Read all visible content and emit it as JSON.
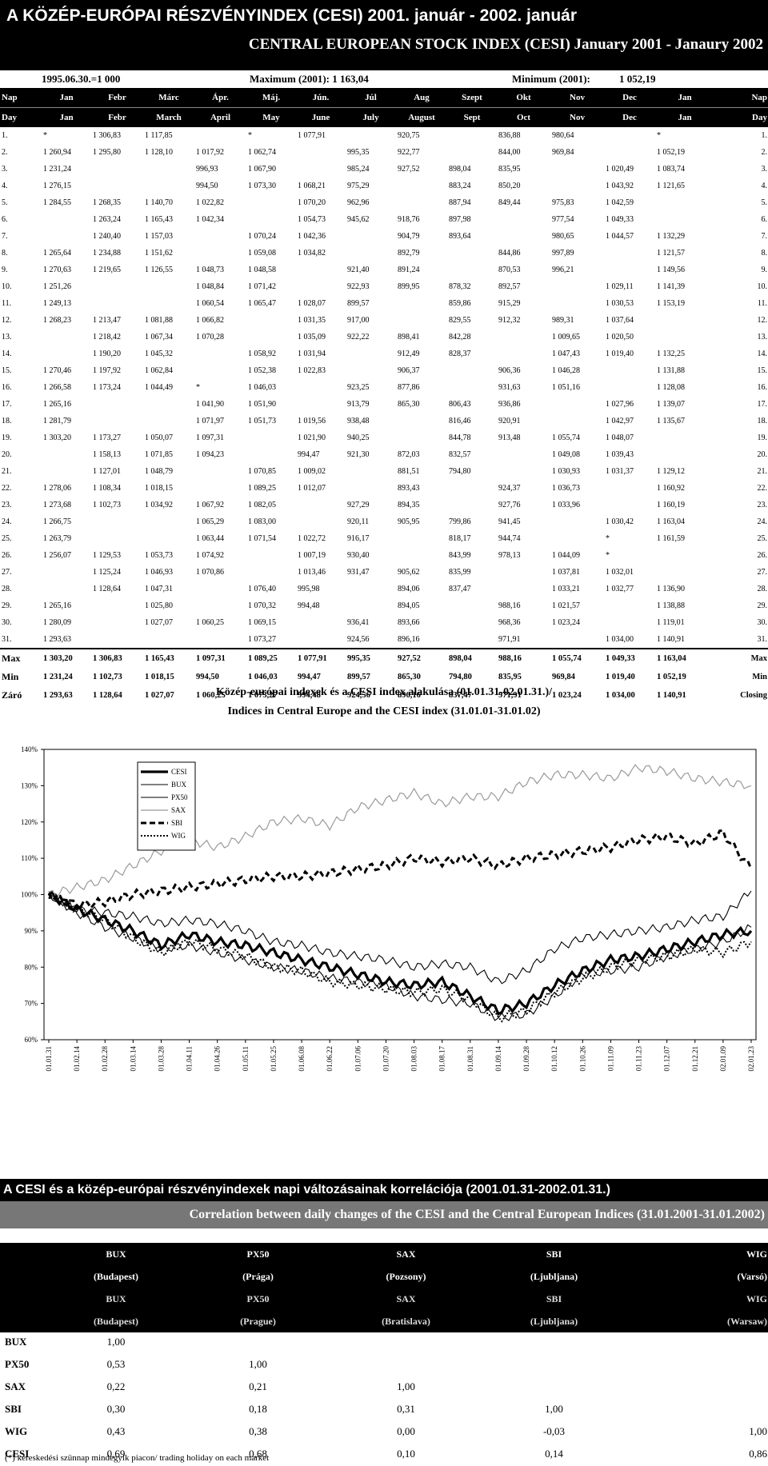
{
  "title_hu": "A KÖZÉP-EURÓPAI RÉSZVÉNYINDEX (CESI) 2001. január - 2002. január",
  "title_en": "CENTRAL EUROPEAN STOCK INDEX (CESI) January 2001 - Janaury 2002",
  "base": "1995.06.30.=1 000",
  "maximum": "Maximum (2001): 1 163,04",
  "minimum_label": "Minimum (2001):",
  "minimum_value": "1 052,19",
  "header_hu": [
    "Nap",
    "Jan",
    "Febr",
    "Márc",
    "Ápr.",
    "Máj.",
    "Jún.",
    "Júl",
    "Aug",
    "Szept",
    "Okt",
    "Nov",
    "Dec",
    "Jan",
    "Nap"
  ],
  "header_en": [
    "Day",
    "Jan",
    "Febr",
    "March",
    "April",
    "May",
    "June",
    "July",
    "August",
    "Sept",
    "Oct",
    "Nov",
    "Dec",
    "Jan",
    "Day"
  ],
  "rows": [
    [
      "1.",
      "*",
      "1 306,83",
      "1 117,85",
      "",
      "*",
      "1 077,91",
      "",
      "920,75",
      "",
      "836,88",
      "980,64",
      "",
      "*",
      "1."
    ],
    [
      "2.",
      "1 260,94",
      "1 295,80",
      "1 128,10",
      "1 017,92",
      "1 062,74",
      "",
      "995,35",
      "922,77",
      "",
      "844,00",
      "969,84",
      "",
      "1 052,19",
      "2."
    ],
    [
      "3.",
      "1 231,24",
      "",
      "",
      "996,93",
      "1 067,90",
      "",
      "985,24",
      "927,52",
      "898,04",
      "835,95",
      "",
      "1 020,49",
      "1 083,74",
      "3."
    ],
    [
      "4.",
      "1 276,15",
      "",
      "",
      "994,50",
      "1 073,30",
      "1 068,21",
      "975,29",
      "",
      "883,24",
      "850,20",
      "",
      "1 043,92",
      "1 121,65",
      "4."
    ],
    [
      "5.",
      "1 284,55",
      "1 268,35",
      "1 140,70",
      "1 022,82",
      "",
      "1 070,20",
      "962,96",
      "",
      "887,94",
      "849,44",
      "975,83",
      "1 042,59",
      "",
      "5."
    ],
    [
      "6.",
      "",
      "1 263,24",
      "1 165,43",
      "1 042,34",
      "",
      "1 054,73",
      "945,62",
      "918,76",
      "897,98",
      "",
      "977,54",
      "1 049,33",
      "",
      "6."
    ],
    [
      "7.",
      "",
      "1 240,40",
      "1 157,03",
      "",
      "1 070,24",
      "1 042,36",
      "",
      "904,79",
      "893,64",
      "",
      "980,65",
      "1 044,57",
      "1 132,29",
      "7."
    ],
    [
      "8.",
      "1 265,64",
      "1 234,88",
      "1 151,62",
      "",
      "1 059,08",
      "1 034,82",
      "",
      "892,79",
      "",
      "844,86",
      "997,89",
      "",
      "1 121,57",
      "8."
    ],
    [
      "9.",
      "1 270,63",
      "1 219,65",
      "1 126,55",
      "1 048,73",
      "1 048,58",
      "",
      "921,40",
      "891,24",
      "",
      "870,53",
      "996,21",
      "",
      "1 149,56",
      "9."
    ],
    [
      "10.",
      "1 251,26",
      "",
      "",
      "1 048,84",
      "1 071,42",
      "",
      "922,93",
      "899,95",
      "878,32",
      "892,57",
      "",
      "1 029,11",
      "1 141,39",
      "10."
    ],
    [
      "11.",
      "1 249,13",
      "",
      "",
      "1 060,54",
      "1 065,47",
      "1 028,07",
      "899,57",
      "",
      "859,86",
      "915,29",
      "",
      "1 030,53",
      "1 153,19",
      "11."
    ],
    [
      "12.",
      "1 268,23",
      "1 213,47",
      "1 081,88",
      "1 066,82",
      "",
      "1 031,35",
      "917,00",
      "",
      "829,55",
      "912,32",
      "989,31",
      "1 037,64",
      "",
      "12."
    ],
    [
      "13.",
      "",
      "1 218,42",
      "1 067,34",
      "1 070,28",
      "",
      "1 035,09",
      "922,22",
      "898,41",
      "842,28",
      "",
      "1 009,65",
      "1 020,50",
      "",
      "13."
    ],
    [
      "14.",
      "",
      "1 190,20",
      "1 045,32",
      "",
      "1 058,92",
      "1 031,94",
      "",
      "912,49",
      "828,37",
      "",
      "1 047,43",
      "1 019,40",
      "1 132,25",
      "14."
    ],
    [
      "15.",
      "1 270,46",
      "1 197,92",
      "1 062,84",
      "",
      "1 052,38",
      "1 022,83",
      "",
      "906,37",
      "",
      "906,36",
      "1 046,28",
      "",
      "1 131,88",
      "15."
    ],
    [
      "16.",
      "1 266,58",
      "1 173,24",
      "1 044,49",
      "*",
      "1 046,03",
      "",
      "923,25",
      "877,86",
      "",
      "931,63",
      "1 051,16",
      "",
      "1 128,08",
      "16."
    ],
    [
      "17.",
      "1 265,16",
      "",
      "",
      "1 041,90",
      "1 051,90",
      "",
      "913,79",
      "865,30",
      "806,43",
      "936,86",
      "",
      "1 027,96",
      "1 139,07",
      "17."
    ],
    [
      "18.",
      "1 281,79",
      "",
      "",
      "1 071,97",
      "1 051,73",
      "1 019,56",
      "938,48",
      "",
      "816,46",
      "920,91",
      "",
      "1 042,97",
      "1 135,67",
      "18."
    ],
    [
      "19.",
      "1 303,20",
      "1 173,27",
      "1 050,07",
      "1 097,31",
      "",
      "1 021,90",
      "940,25",
      "",
      "844,78",
      "913,48",
      "1 055,74",
      "1 048,07",
      "",
      "19."
    ],
    [
      "20.",
      "",
      "1 158,13",
      "1 071,85",
      "1 094,23",
      "",
      "994,47",
      "921,30",
      "872,03",
      "832,57",
      "",
      "1 049,08",
      "1 039,43",
      "",
      "20."
    ],
    [
      "21.",
      "",
      "1 127,01",
      "1 048,79",
      "",
      "1 070,85",
      "1 009,02",
      "",
      "881,51",
      "794,80",
      "",
      "1 030,93",
      "1 031,37",
      "1 129,12",
      "21."
    ],
    [
      "22.",
      "1 278,06",
      "1 108,34",
      "1 018,15",
      "",
      "1 089,25",
      "1 012,07",
      "",
      "893,43",
      "",
      "924,37",
      "1 036,73",
      "",
      "1 160,92",
      "22."
    ],
    [
      "23.",
      "1 273,68",
      "1 102,73",
      "1 034,92",
      "1 067,92",
      "1 082,05",
      "",
      "927,29",
      "894,35",
      "",
      "927,76",
      "1 033,96",
      "",
      "1 160,19",
      "23."
    ],
    [
      "24.",
      "1 266,75",
      "",
      "",
      "1 065,29",
      "1 083,00",
      "",
      "920,11",
      "905,95",
      "799,86",
      "941,45",
      "",
      "1 030,42",
      "1 163,04",
      "24."
    ],
    [
      "25.",
      "1 263,79",
      "",
      "",
      "1 063,44",
      "1 071,54",
      "1 022,72",
      "916,17",
      "",
      "818,17",
      "944,74",
      "",
      "*",
      "1 161,59",
      "25."
    ],
    [
      "26.",
      "1 256,07",
      "1 129,53",
      "1 053,73",
      "1 074,92",
      "",
      "1 007,19",
      "930,40",
      "",
      "843,99",
      "978,13",
      "1 044,09",
      "*",
      "",
      "26."
    ],
    [
      "27.",
      "",
      "1 125,24",
      "1 046,93",
      "1 070,86",
      "",
      "1 013,46",
      "931,47",
      "905,62",
      "835,99",
      "",
      "1 037,81",
      "1 032,01",
      "",
      "27."
    ],
    [
      "28.",
      "",
      "1 128,64",
      "1 047,31",
      "",
      "1 076,40",
      "995,98",
      "",
      "894,06",
      "837,47",
      "",
      "1 033,21",
      "1 032,77",
      "1 136,90",
      "28."
    ],
    [
      "29.",
      "1 265,16",
      "",
      "1 025,80",
      "",
      "1 070,32",
      "994,48",
      "",
      "894,05",
      "",
      "988,16",
      "1 021,57",
      "",
      "1 138,88",
      "29."
    ],
    [
      "30.",
      "1 280,09",
      "",
      "1 027,07",
      "1 060,25",
      "1 069,15",
      "",
      "936,41",
      "893,66",
      "",
      "968,36",
      "1 023,24",
      "",
      "1 119,01",
      "30."
    ],
    [
      "31.",
      "1 293,63",
      "",
      "",
      "",
      "1 073,27",
      "",
      "924,56",
      "896,16",
      "",
      "971,91",
      "",
      "1 034,00",
      "1 140,91",
      "31."
    ]
  ],
  "stats": [
    [
      "Max",
      "1 303,20",
      "1 306,83",
      "1 165,43",
      "1 097,31",
      "1 089,25",
      "1 077,91",
      "995,35",
      "927,52",
      "898,04",
      "988,16",
      "1 055,74",
      "1 049,33",
      "1 163,04",
      "Max"
    ],
    [
      "Min",
      "1 231,24",
      "1 102,73",
      "1 018,15",
      "994,50",
      "1 046,03",
      "994,47",
      "899,57",
      "865,30",
      "794,80",
      "835,95",
      "969,84",
      "1 019,40",
      "1 052,19",
      "Min"
    ],
    [
      "Záró",
      "1 293,63",
      "1 128,64",
      "1 027,07",
      "1 060,25",
      "1 073,27",
      "994,48",
      "924,56",
      "896,16",
      "837,47",
      "971,91",
      "1 023,24",
      "1 034,00",
      "1 140,91",
      "Closing"
    ]
  ],
  "chart_title_hu": "Közép-európai indexek és a CESI index alakulása (01.01.31-02.01.31.)/",
  "chart_title_en": "Indices in Central Europe and the CESI index (31.01.01-31.01.02)",
  "chart_data": {
    "type": "line",
    "ylim": [
      60,
      140
    ],
    "y_ticks": [
      "60%",
      "70%",
      "80%",
      "90%",
      "100%",
      "110%",
      "120%",
      "130%",
      "140%"
    ],
    "x_ticks": [
      "01.01.31",
      "01.02.14",
      "01.02.28",
      "01.03.14",
      "01.03.28",
      "01.04.11",
      "01.04.26",
      "01.05.11",
      "01.05.25",
      "01.06.08",
      "01.06.22",
      "01.07.06",
      "01.07.20",
      "01.08.03",
      "01.08.17",
      "01.08.31",
      "01.09.14",
      "01.09.28",
      "01.10.12",
      "01.10.26",
      "01.11.09",
      "01.11.23",
      "01.12.07",
      "01.12.21",
      "02.01.09",
      "02.01.23"
    ],
    "series": [
      {
        "name": "CESI",
        "style": "thick",
        "values": [
          100,
          96,
          93,
          90,
          86,
          89,
          87,
          86,
          84,
          82,
          80,
          78,
          76,
          75,
          76,
          72,
          68,
          70,
          75,
          79,
          82,
          83,
          85,
          87,
          89,
          90
        ]
      },
      {
        "name": "BUX",
        "style": "solid",
        "values": [
          100,
          95,
          91,
          88,
          85,
          86,
          84,
          82,
          80,
          79,
          77,
          76,
          75,
          72,
          71,
          70,
          66,
          67,
          72,
          78,
          79,
          80,
          83,
          85,
          87,
          91
        ]
      },
      {
        "name": "PX50",
        "style": "solid",
        "values": [
          100,
          96,
          95,
          94,
          92,
          93,
          92,
          90,
          87,
          86,
          84,
          83,
          82,
          80,
          81,
          80,
          76,
          79,
          85,
          88,
          89,
          90,
          91,
          93,
          94,
          101
        ]
      },
      {
        "name": "SAX",
        "style": "light",
        "values": [
          100,
          102,
          104,
          108,
          112,
          115,
          113,
          116,
          120,
          121,
          119,
          124,
          126,
          128,
          125,
          127,
          127,
          131,
          133,
          133,
          132,
          135,
          134,
          132,
          131,
          130
        ]
      },
      {
        "name": "SBI",
        "style": "dashed",
        "values": [
          100,
          97,
          98,
          100,
          101,
          102,
          103,
          104,
          105,
          105,
          106,
          107,
          108,
          110,
          109,
          110,
          108,
          110,
          111,
          112,
          113,
          115,
          116,
          114,
          117,
          107
        ]
      },
      {
        "name": "WIG",
        "style": "dotted",
        "values": [
          100,
          96,
          93,
          88,
          84,
          87,
          85,
          83,
          80,
          79,
          76,
          75,
          74,
          73,
          74,
          71,
          66,
          68,
          73,
          77,
          80,
          82,
          83,
          85,
          84,
          87
        ]
      }
    ]
  },
  "corr_title_hu": "A CESI és a közép-európai részvényindexek napi változásainak korrelációja (2001.01.31-2002.01.31.)",
  "corr_title_en": "Correlation between daily changes of the CESI and the Central European Indices (31.01.2001-31.01.2002)",
  "corr_headers": [
    "BUX",
    "PX50",
    "SAX",
    "SBI",
    "WIG"
  ],
  "corr_sub_hu": [
    "(Budapest)",
    "(Prága)",
    "(Pozsony)",
    "(Ljubljana)",
    "(Varsó)"
  ],
  "corr_sub_en_name": [
    "BUX",
    "PX50",
    "SAX",
    "SBI",
    "WIG"
  ],
  "corr_sub_en": [
    "(Budapest)",
    "(Prague)",
    "(Bratislava)",
    "(Ljubljana)",
    "(Warsaw)"
  ],
  "corr_rows": [
    [
      "BUX",
      "1,00",
      "",
      "",
      "",
      ""
    ],
    [
      "PX50",
      "0,53",
      "1,00",
      "",
      "",
      ""
    ],
    [
      "SAX",
      "0,22",
      "0,21",
      "1,00",
      "",
      ""
    ],
    [
      "SBI",
      "0,30",
      "0,18",
      "0,31",
      "1,00",
      ""
    ],
    [
      "WIG",
      "0,43",
      "0,38",
      "0,00",
      "-0,03",
      "1,00"
    ],
    [
      "CESI",
      "0,69",
      "0,68",
      "0,10",
      "0,14",
      "0,86"
    ]
  ],
  "footnote": "(*) kereskedési szünnap mindegyik piacon/ trading holiday on each market"
}
